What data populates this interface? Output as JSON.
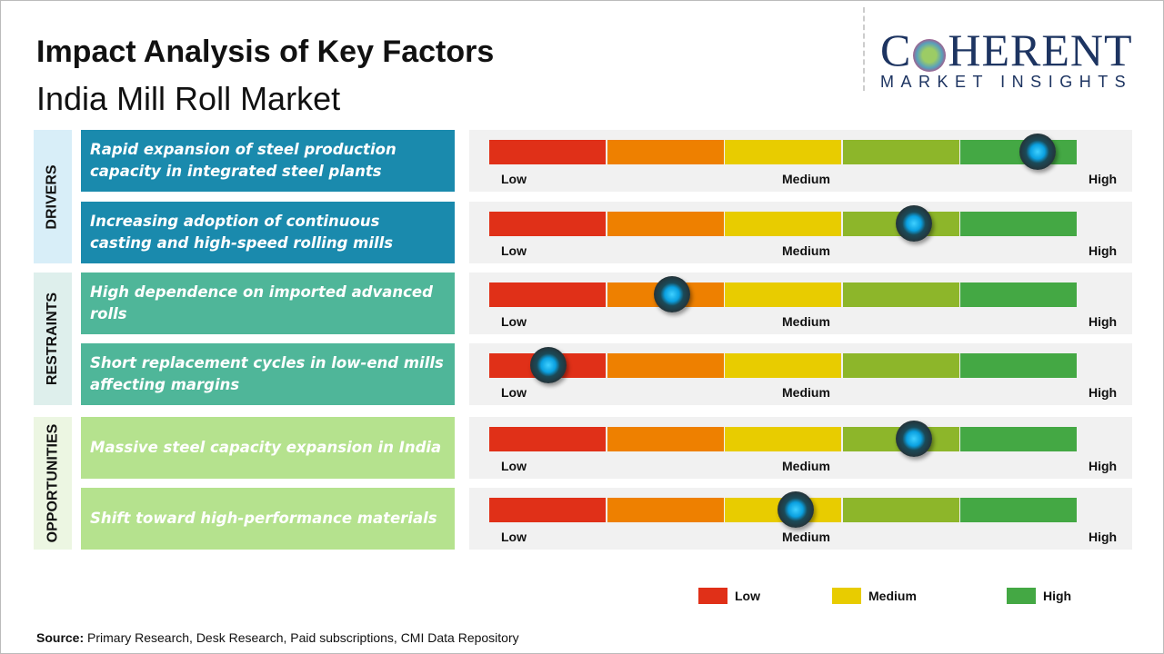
{
  "title": "Impact Analysis of Key Factors",
  "subtitle": "India Mill Roll Market",
  "logo": {
    "top": "COHERENT",
    "bottom": "MARKET INSIGHTS"
  },
  "colors": {
    "drivers": "#1a8aad",
    "restraints": "#4fb699",
    "opportunities": "#b5e28e",
    "low": "#e03018",
    "low_med": "#ee8000",
    "medium": "#e8cc00",
    "med_high": "#8db62a",
    "high": "#44a844"
  },
  "scale_labels": {
    "low": "Low",
    "medium": "Medium",
    "high": "High"
  },
  "chart_data": {
    "type": "gauge-bar",
    "scale": [
      "Low",
      "Medium",
      "High"
    ],
    "range": [
      0,
      1
    ],
    "categories": [
      {
        "name": "DRIVERS",
        "factors": [
          {
            "label": "Rapid expansion of steel production capacity in integrated steel plants",
            "impact": 0.93
          },
          {
            "label": "Increasing adoption of continuous casting and high-speed rolling mills",
            "impact": 0.72
          }
        ]
      },
      {
        "name": "RESTRAINTS",
        "factors": [
          {
            "label": "High dependence on imported advanced rolls",
            "impact": 0.31
          },
          {
            "label": "Short replacement cycles in low-end mills affecting margins",
            "impact": 0.1
          }
        ]
      },
      {
        "name": "OPPORTUNITIES",
        "factors": [
          {
            "label": "Massive steel capacity expansion in India",
            "impact": 0.72
          },
          {
            "label": "Shift toward high-performance materials",
            "impact": 0.52
          }
        ]
      }
    ],
    "legend": [
      "Low",
      "Medium",
      "High"
    ],
    "legend_placement": "bottom-right"
  },
  "source": {
    "label": "Source:",
    "text": " Primary Research, Desk Research, Paid subscriptions, CMI Data Repository"
  }
}
